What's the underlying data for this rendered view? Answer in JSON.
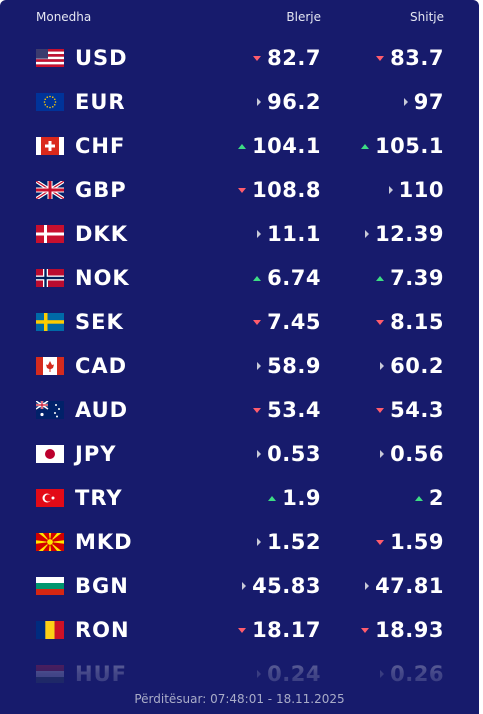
{
  "header": {
    "currency": "Monedha",
    "buy": "Blerje",
    "sell": "Shitje"
  },
  "rows": [
    {
      "code": "USD",
      "buy": 82.7,
      "buy_trend": "down",
      "sell": 83.7,
      "sell_trend": "down"
    },
    {
      "code": "EUR",
      "buy": 96.2,
      "buy_trend": "flat",
      "sell": 97,
      "sell_trend": "flat"
    },
    {
      "code": "CHF",
      "buy": 104.1,
      "buy_trend": "up",
      "sell": 105.1,
      "sell_trend": "up"
    },
    {
      "code": "GBP",
      "buy": 108.8,
      "buy_trend": "down",
      "sell": 110,
      "sell_trend": "flat"
    },
    {
      "code": "DKK",
      "buy": 11.1,
      "buy_trend": "flat",
      "sell": 12.39,
      "sell_trend": "flat"
    },
    {
      "code": "NOK",
      "buy": 6.74,
      "buy_trend": "up",
      "sell": 7.39,
      "sell_trend": "up"
    },
    {
      "code": "SEK",
      "buy": 7.45,
      "buy_trend": "down",
      "sell": 8.15,
      "sell_trend": "down"
    },
    {
      "code": "CAD",
      "buy": 58.9,
      "buy_trend": "flat",
      "sell": 60.2,
      "sell_trend": "flat"
    },
    {
      "code": "AUD",
      "buy": 53.4,
      "buy_trend": "down",
      "sell": 54.3,
      "sell_trend": "down"
    },
    {
      "code": "JPY",
      "buy": 0.53,
      "buy_trend": "flat",
      "sell": 0.56,
      "sell_trend": "flat"
    },
    {
      "code": "TRY",
      "buy": 1.9,
      "buy_trend": "up",
      "sell": 2,
      "sell_trend": "up"
    },
    {
      "code": "MKD",
      "buy": 1.52,
      "buy_trend": "flat",
      "sell": 1.59,
      "sell_trend": "down"
    },
    {
      "code": "BGN",
      "buy": 45.83,
      "buy_trend": "flat",
      "sell": 47.81,
      "sell_trend": "flat"
    },
    {
      "code": "RON",
      "buy": 18.17,
      "buy_trend": "down",
      "sell": 18.93,
      "sell_trend": "down"
    },
    {
      "code": "HUF",
      "buy": 0.24,
      "buy_trend": "flat",
      "sell": 0.26,
      "sell_trend": "flat"
    }
  ],
  "footer": {
    "updated": "Përditësuar: 07:48:01 - 18.11.2025"
  }
}
